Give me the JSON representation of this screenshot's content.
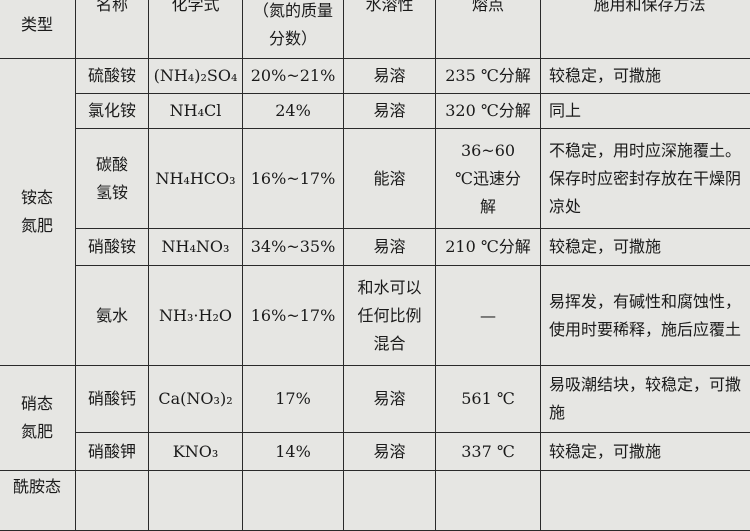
{
  "header": {
    "type": "类型",
    "name": "名称",
    "formula": "化学式",
    "nitrogen": "（氮的质量分数）",
    "solubility": "水溶性",
    "melting": "熔点",
    "usage": "施用和保存方法"
  },
  "groups": [
    {
      "type": "铵态氮肥",
      "rows": [
        {
          "name": "硫酸铵",
          "formula": "(NH₄)₂SO₄",
          "nitrogen": "20%~21%",
          "solubility": "易溶",
          "melting": "235 ℃分解",
          "usage": "较稳定，可撒施"
        },
        {
          "name": "氯化铵",
          "formula": "NH₄Cl",
          "nitrogen": "24%",
          "solubility": "易溶",
          "melting": "320 ℃分解",
          "usage": "同上"
        },
        {
          "name": "碳酸氢铵",
          "formula": "NH₄HCO₃",
          "nitrogen": "16%~17%",
          "solubility": "能溶",
          "melting": "36~60 ℃迅速分解",
          "usage": "不稳定，用时应深施覆土。保存时应密封存放在干燥阴凉处"
        },
        {
          "name": "硝酸铵",
          "formula": "NH₄NO₃",
          "nitrogen": "34%~35%",
          "solubility": "易溶",
          "melting": "210 ℃分解",
          "usage": "较稳定，可撒施"
        },
        {
          "name": "氨水",
          "formula": "NH₃·H₂O",
          "nitrogen": "16%~17%",
          "solubility": "和水可以任何比例混合",
          "melting": "—",
          "usage": "易挥发，有碱性和腐蚀性，使用时要稀释，施后应覆土"
        }
      ]
    },
    {
      "type": "硝态氮肥",
      "rows": [
        {
          "name": "硝酸钙",
          "formula": "Ca(NO₃)₂",
          "nitrogen": "17%",
          "solubility": "易溶",
          "melting": "561 ℃",
          "usage": "易吸潮结块，较稳定，可撒施"
        },
        {
          "name": "硝酸钾",
          "formula": "KNO₃",
          "nitrogen": "14%",
          "solubility": "易溶",
          "melting": "337 ℃",
          "usage": "较稳定，可撒施"
        }
      ]
    },
    {
      "type": "酰胺态",
      "rows": []
    }
  ]
}
